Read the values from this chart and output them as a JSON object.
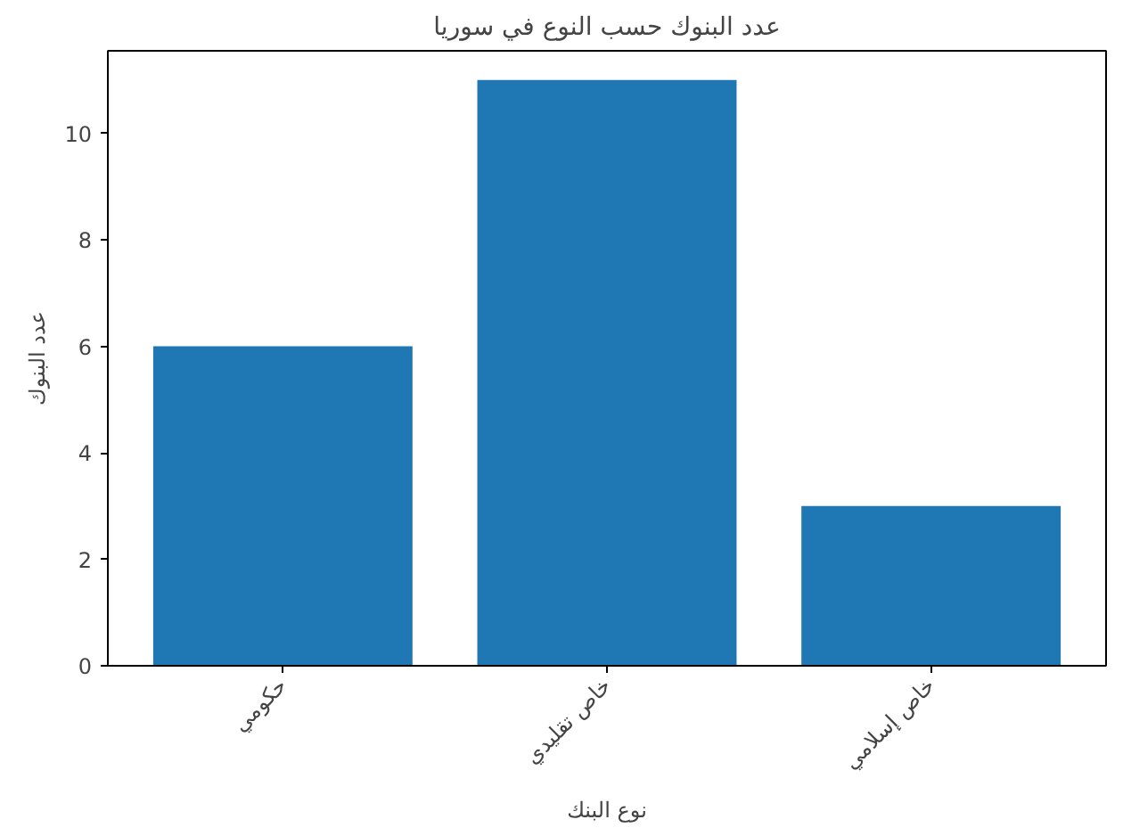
{
  "chart_data": {
    "type": "bar",
    "title": "عدد البنوك حسب النوع في سوريا",
    "xlabel": "نوع البنك",
    "ylabel": "عدد البنوك",
    "categories": [
      "حكومي",
      "خاص تقليدي",
      "خاص إسلامي"
    ],
    "values": [
      6,
      11,
      3
    ],
    "color": "#1f77b4",
    "ylim": [
      0,
      11.55
    ],
    "yticks": [
      0,
      2,
      4,
      6,
      8,
      10
    ],
    "grid": false
  }
}
